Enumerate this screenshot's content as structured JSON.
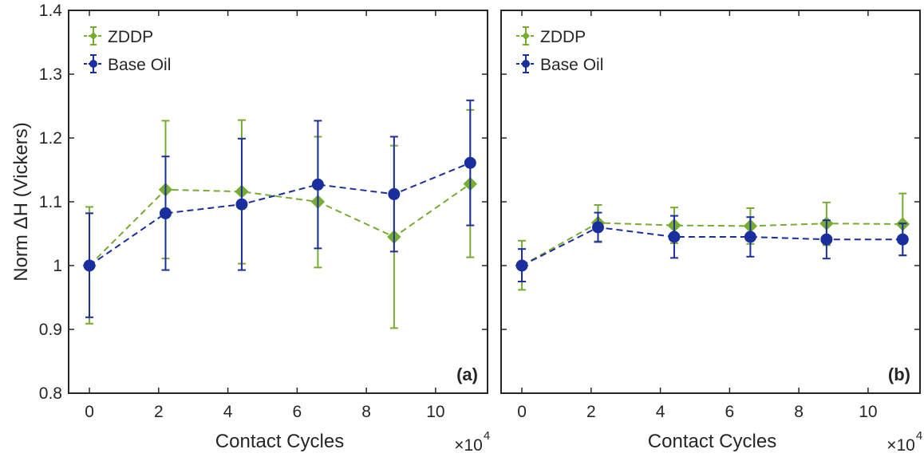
{
  "colors": {
    "zddp": "#77AC30",
    "base_oil": "#1A2F9E",
    "axis": "#262626"
  },
  "shared_ylabel": "Norm ΔH (Vickers)",
  "chart_data": [
    {
      "type": "line",
      "panel_label": "(a)",
      "xlabel": "Contact Cycles",
      "ylabel": "Norm ΔH (Vickers)",
      "x_exponent": {
        "base": "×10",
        "power": "4"
      },
      "xlim": [
        -0.6,
        11.5
      ],
      "ylim": [
        0.8,
        1.4
      ],
      "xticks": [
        0,
        2,
        4,
        6,
        8,
        10
      ],
      "yticks": [
        0.8,
        0.9,
        1.0,
        1.1,
        1.2,
        1.3,
        1.4
      ],
      "ytick_labels": [
        "0.8",
        "0.9",
        "1",
        "1.1",
        "1.2",
        "1.3",
        "1.4"
      ],
      "grid": false,
      "legend_position": "top-left",
      "series": [
        {
          "name": "ZDDP",
          "color": "zddp",
          "marker": "diamond",
          "x": [
            0,
            2.2,
            4.4,
            6.6,
            8.8,
            11.0
          ],
          "y": [
            1.0,
            1.119,
            1.116,
            1.1,
            1.045,
            1.128
          ],
          "err_low": [
            0.909,
            1.011,
            1.003,
            0.997,
            0.902,
            1.013
          ],
          "err_high": [
            1.092,
            1.227,
            1.228,
            1.202,
            1.188,
            1.244
          ]
        },
        {
          "name": "Base Oil",
          "color": "base_oil",
          "marker": "circle",
          "x": [
            0,
            2.2,
            4.4,
            6.6,
            8.8,
            11.0
          ],
          "y": [
            1.0,
            1.082,
            1.096,
            1.127,
            1.112,
            1.161
          ],
          "err_low": [
            0.919,
            0.993,
            0.993,
            1.027,
            1.022,
            1.063
          ],
          "err_high": [
            1.082,
            1.171,
            1.199,
            1.227,
            1.202,
            1.259
          ]
        }
      ]
    },
    {
      "type": "line",
      "panel_label": "(b)",
      "xlabel": "Contact Cycles",
      "x_exponent": {
        "base": "×10",
        "power": "4"
      },
      "xlim": [
        -0.6,
        11.5
      ],
      "ylim": [
        0.8,
        1.4
      ],
      "xticks": [
        0,
        2,
        4,
        6,
        8,
        10
      ],
      "yticks": [
        0.8,
        0.9,
        1.0,
        1.1,
        1.2,
        1.3,
        1.4
      ],
      "ytick_labels": [],
      "grid": false,
      "legend_position": "top-left",
      "series": [
        {
          "name": "ZDDP",
          "color": "zddp",
          "marker": "diamond",
          "x": [
            0,
            2.2,
            4.4,
            6.6,
            8.8,
            11.0
          ],
          "y": [
            1.0,
            1.067,
            1.063,
            1.062,
            1.066,
            1.065
          ],
          "err_low": [
            0.962,
            1.038,
            1.035,
            1.034,
            1.032,
            1.016
          ],
          "err_high": [
            1.039,
            1.095,
            1.091,
            1.09,
            1.099,
            1.113
          ]
        },
        {
          "name": "Base Oil",
          "color": "base_oil",
          "marker": "circle",
          "x": [
            0,
            2.2,
            4.4,
            6.6,
            8.8,
            11.0
          ],
          "y": [
            1.0,
            1.06,
            1.045,
            1.045,
            1.041,
            1.041
          ],
          "err_low": [
            0.975,
            1.037,
            1.012,
            1.014,
            1.011,
            1.016
          ],
          "err_high": [
            1.026,
            1.083,
            1.078,
            1.076,
            1.071,
            1.066
          ]
        }
      ]
    }
  ]
}
